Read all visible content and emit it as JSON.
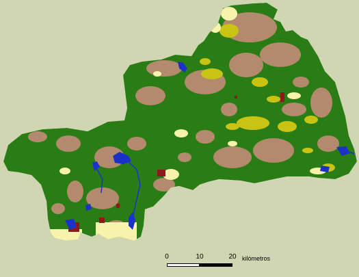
{
  "colors": {
    "background": "#d0d6b2",
    "forest": "#2a7d14",
    "shrub": "#b48a6e",
    "cropland": "#c9c414",
    "grassland": "#f7f3ad",
    "water": "#1a32c8",
    "urban": "#8c1a1a"
  },
  "scale": {
    "ticks": [
      "0",
      "10",
      "20"
    ],
    "unit": "kilómetros"
  }
}
